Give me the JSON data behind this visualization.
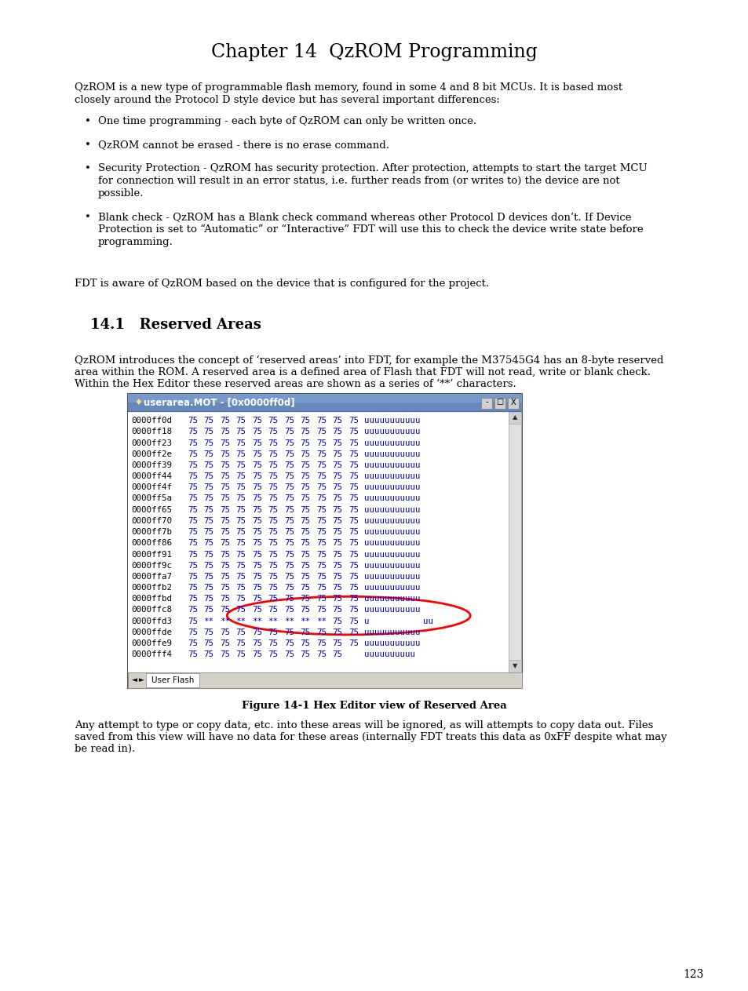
{
  "title": "Chapter 14  QzROM Programming",
  "bg_color": "#ffffff",
  "page_number": "123",
  "body_text_1a": "QzROM is a new type of programmable flash memory, found in some 4 and 8 bit MCUs. It is based most",
  "body_text_1b": "closely around the Protocol D style device but has several important differences:",
  "bullets": [
    "One time programming - each byte of QzROM can only be written once.",
    "QzROM cannot be erased - there is no erase command.",
    "Security Protection - QzROM has security protection. After protection, attempts to start the target MCU\nfor connection will result in an error status, i.e. further reads from (or writes to) the device are not\npossible.",
    "Blank check - QzROM has a Blank check command whereas other Protocol D devices don’t. If Device\nProtection is set to “Automatic” or “Interactive” FDT will use this to check the device write state before\nprogramming."
  ],
  "body_text_2": "FDT is aware of QzROM based on the device that is configured for the project.",
  "section_title": "14.1   Reserved Areas",
  "body_text_3a": "QzROM introduces the concept of ‘reserved areas’ into FDT, for example the M37545G4 has an 8-byte reserved",
  "body_text_3b": "area within the ROM. A reserved area is a defined area of Flash that FDT will not read, write or blank check.",
  "body_text_3c": "Within the Hex Editor these reserved areas are shown as a series of ‘**’ characters.",
  "figure_caption": "Figure 14-1 Hex Editor view of Reserved Area",
  "body_text_4a": "Any attempt to type or copy data, etc. into these areas will be ignored, as will attempts to copy data out. Files",
  "body_text_4b": "saved from this view will have no data for these areas (internally FDT treats this data as 0xFF despite what may",
  "body_text_4c": "be read in).",
  "hex_title": "userarea.MOT - [0x0000ff0d]",
  "hex_rows": [
    {
      "addr": "0000ff0d",
      "vals": [
        "75",
        "75",
        "75",
        "75",
        "75",
        "75",
        "75",
        "75",
        "75",
        "75",
        "75"
      ],
      "chars": "uuuuuuuuuuu"
    },
    {
      "addr": "0000ff18",
      "vals": [
        "75",
        "75",
        "75",
        "75",
        "75",
        "75",
        "75",
        "75",
        "75",
        "75",
        "75"
      ],
      "chars": "uuuuuuuuuuu"
    },
    {
      "addr": "0000ff23",
      "vals": [
        "75",
        "75",
        "75",
        "75",
        "75",
        "75",
        "75",
        "75",
        "75",
        "75",
        "75"
      ],
      "chars": "uuuuuuuuuuu"
    },
    {
      "addr": "0000ff2e",
      "vals": [
        "75",
        "75",
        "75",
        "75",
        "75",
        "75",
        "75",
        "75",
        "75",
        "75",
        "75"
      ],
      "chars": "uuuuuuuuuuu"
    },
    {
      "addr": "0000ff39",
      "vals": [
        "75",
        "75",
        "75",
        "75",
        "75",
        "75",
        "75",
        "75",
        "75",
        "75",
        "75"
      ],
      "chars": "uuuuuuuuuuu"
    },
    {
      "addr": "0000ff44",
      "vals": [
        "75",
        "75",
        "75",
        "75",
        "75",
        "75",
        "75",
        "75",
        "75",
        "75",
        "75"
      ],
      "chars": "uuuuuuuuuuu"
    },
    {
      "addr": "0000ff4f",
      "vals": [
        "75",
        "75",
        "75",
        "75",
        "75",
        "75",
        "75",
        "75",
        "75",
        "75",
        "75"
      ],
      "chars": "uuuuuuuuuuu"
    },
    {
      "addr": "0000ff5a",
      "vals": [
        "75",
        "75",
        "75",
        "75",
        "75",
        "75",
        "75",
        "75",
        "75",
        "75",
        "75"
      ],
      "chars": "uuuuuuuuuuu"
    },
    {
      "addr": "0000ff65",
      "vals": [
        "75",
        "75",
        "75",
        "75",
        "75",
        "75",
        "75",
        "75",
        "75",
        "75",
        "75"
      ],
      "chars": "uuuuuuuuuuu"
    },
    {
      "addr": "0000ff70",
      "vals": [
        "75",
        "75",
        "75",
        "75",
        "75",
        "75",
        "75",
        "75",
        "75",
        "75",
        "75"
      ],
      "chars": "uuuuuuuuuuu"
    },
    {
      "addr": "0000ff7b",
      "vals": [
        "75",
        "75",
        "75",
        "75",
        "75",
        "75",
        "75",
        "75",
        "75",
        "75",
        "75"
      ],
      "chars": "uuuuuuuuuuu"
    },
    {
      "addr": "0000ff86",
      "vals": [
        "75",
        "75",
        "75",
        "75",
        "75",
        "75",
        "75",
        "75",
        "75",
        "75",
        "75"
      ],
      "chars": "uuuuuuuuuuu"
    },
    {
      "addr": "0000ff91",
      "vals": [
        "75",
        "75",
        "75",
        "75",
        "75",
        "75",
        "75",
        "75",
        "75",
        "75",
        "75"
      ],
      "chars": "uuuuuuuuuuu"
    },
    {
      "addr": "0000ff9c",
      "vals": [
        "75",
        "75",
        "75",
        "75",
        "75",
        "75",
        "75",
        "75",
        "75",
        "75",
        "75"
      ],
      "chars": "uuuuuuuuuuu"
    },
    {
      "addr": "0000ffa7",
      "vals": [
        "75",
        "75",
        "75",
        "75",
        "75",
        "75",
        "75",
        "75",
        "75",
        "75",
        "75"
      ],
      "chars": "uuuuuuuuuuu"
    },
    {
      "addr": "0000ffb2",
      "vals": [
        "75",
        "75",
        "75",
        "75",
        "75",
        "75",
        "75",
        "75",
        "75",
        "75",
        "75"
      ],
      "chars": "uuuuuuuuuuu"
    },
    {
      "addr": "0000ffbd",
      "vals": [
        "75",
        "75",
        "75",
        "75",
        "75",
        "75",
        "75",
        "75",
        "75",
        "75",
        "75"
      ],
      "chars": "uuuuuuuuuuu"
    },
    {
      "addr": "0000ffc8",
      "vals": [
        "75",
        "75",
        "75",
        "75",
        "75",
        "75",
        "75",
        "75",
        "75",
        "75",
        "75"
      ],
      "chars": "uuuuuuuuuuu",
      "ellipse_start": true
    },
    {
      "addr": "0000ffd3",
      "vals": [
        "75",
        "**",
        "**",
        "**",
        "**",
        "**",
        "**",
        "**",
        "**",
        "75",
        "75"
      ],
      "chars_left": "u",
      "chars_right": "uu",
      "special": true
    },
    {
      "addr": "0000ffde",
      "vals": [
        "75",
        "75",
        "75",
        "75",
        "75",
        "75",
        "75",
        "75",
        "75",
        "75",
        "75"
      ],
      "chars": "uuuuuuuuuuu",
      "ellipse_end": true
    },
    {
      "addr": "0000ffe9",
      "vals": [
        "75",
        "75",
        "75",
        "75",
        "75",
        "75",
        "75",
        "75",
        "75",
        "75",
        "75"
      ],
      "chars": "uuuuuuuuuuu"
    },
    {
      "addr": "0000fff4",
      "vals": [
        "75",
        "75",
        "75",
        "75",
        "75",
        "75",
        "75",
        "75",
        "75",
        "75"
      ],
      "chars": "uuuuuuuuuu"
    }
  ],
  "title_bar_color": "#5577bb",
  "title_bar_color2": "#7799cc",
  "blue_text": "#0000cc",
  "black_text": "#000000"
}
